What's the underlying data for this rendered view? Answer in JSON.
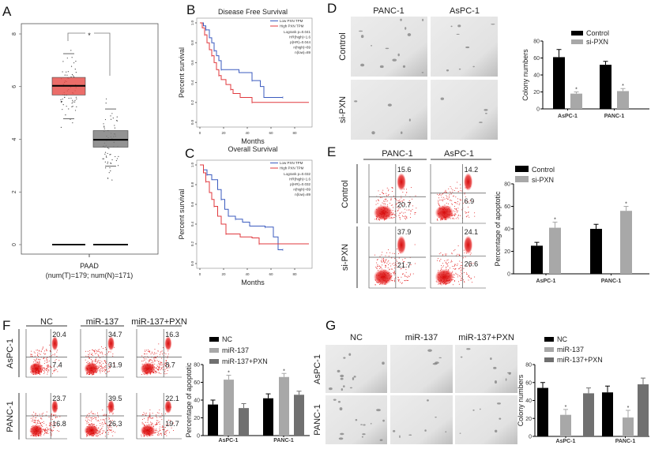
{
  "figure": {
    "panel_labels": {
      "A": "A",
      "B": "B",
      "C": "C",
      "D": "D",
      "E": "E",
      "F": "F",
      "G": "G"
    },
    "D": {
      "columns": [
        "PANC-1",
        "AsPC-1"
      ],
      "rows": [
        "Control",
        "si-PXN"
      ]
    },
    "E": {
      "columns": [
        "PANC-1",
        "AsPC-1"
      ],
      "rows": [
        "Control",
        "si-PXN"
      ],
      "quadrant_values": [
        [
          "15.6",
          "20.7"
        ],
        [
          "14.2",
          "6.9"
        ],
        [
          "37.9",
          "21.7"
        ],
        [
          "24.1",
          "26.6"
        ]
      ]
    },
    "F": {
      "columns": [
        "NC",
        "miR-137",
        "miR-137+PXN"
      ],
      "rows": [
        "AsPC-1",
        "PANC-1"
      ],
      "quadrant_values": [
        [
          "20.4",
          "7.4"
        ],
        [
          "34.7",
          "31.9"
        ],
        [
          "16.3",
          "8.7"
        ],
        [
          "23.7",
          "16.8"
        ],
        [
          "39.5",
          "26.3"
        ],
        [
          "22.1",
          "19.7"
        ]
      ]
    },
    "G": {
      "columns": [
        "NC",
        "miR-137",
        "miR-137+PXN"
      ],
      "rows": [
        "AsPC-1",
        "PANC-1"
      ]
    },
    "colors": {
      "tumor": "#e8534f",
      "normal": "#808080",
      "low": "#3b5bbf",
      "high": "#e0393e",
      "flow": "#e01010",
      "black": "#000000",
      "light_gray": "#a8a8a8",
      "dark_gray": "#707070"
    }
  },
  "chart_data": [
    {
      "type": "box",
      "xlabel": "PAAD",
      "subtitle": "(num(T)=179; num(N)=171)",
      "ylim": [
        0,
        8
      ],
      "yticks": [
        "0",
        "2",
        "4",
        "6",
        "8"
      ],
      "significance": "*",
      "boxes": [
        {
          "color": "#e8534f",
          "median": 6.03,
          "q1": 5.68,
          "q3": 6.35,
          "whisker_low": 4.78,
          "whisker_high": 7.25,
          "zero_line": 0
        },
        {
          "color": "#808080",
          "median": 3.98,
          "q1": 3.7,
          "q3": 4.33,
          "whisker_low": 2.98,
          "whisker_high": 5.15,
          "zero_line": 0
        }
      ]
    },
    {
      "type": "line",
      "title": "Disease Free Survival",
      "xlabel": "Months",
      "ylabel": "Percent survival",
      "xlim": [
        0,
        90
      ],
      "ylim": [
        0,
        1
      ],
      "xticks": [
        "0",
        "20",
        "40",
        "60",
        "80"
      ],
      "yticks": [
        "0.0",
        "0.2",
        "0.4",
        "0.6",
        "0.8",
        "1.0"
      ],
      "series": [
        {
          "name": "Low PXN TPM",
          "color": "#3b5bbf",
          "points": [
            [
              0,
              1
            ],
            [
              3,
              0.97
            ],
            [
              5,
              0.93
            ],
            [
              8,
              0.85
            ],
            [
              10,
              0.8
            ],
            [
              12,
              0.72
            ],
            [
              14,
              0.67
            ],
            [
              16,
              0.62
            ],
            [
              18,
              0.53
            ],
            [
              33,
              0.5
            ],
            [
              38,
              0.5
            ],
            [
              44,
              0.42
            ],
            [
              51,
              0.36
            ],
            [
              54,
              0.25
            ],
            [
              70,
              0.25
            ]
          ]
        },
        {
          "name": "High PXN TPM",
          "color": "#e0393e",
          "points": [
            [
              0,
              1
            ],
            [
              2,
              0.95
            ],
            [
              4,
              0.88
            ],
            [
              6,
              0.8
            ],
            [
              8,
              0.73
            ],
            [
              10,
              0.67
            ],
            [
              12,
              0.6
            ],
            [
              14,
              0.53
            ],
            [
              16,
              0.47
            ],
            [
              18,
              0.43
            ],
            [
              22,
              0.38
            ],
            [
              26,
              0.33
            ],
            [
              28,
              0.29
            ],
            [
              34,
              0.25
            ],
            [
              44,
              0.2
            ],
            [
              92,
              0.2
            ]
          ]
        }
      ],
      "stats": [
        "Logrank p=0.041",
        "HR(high)=1.6",
        "p(HR)=0.044",
        "n(high)=89",
        "n(low)=89"
      ]
    },
    {
      "type": "line",
      "title": "Overall Survival",
      "xlabel": "Months",
      "ylabel": "Percent survival",
      "xlim": [
        0,
        90
      ],
      "ylim": [
        0,
        1
      ],
      "xticks": [
        "0",
        "20",
        "40",
        "60",
        "80"
      ],
      "yticks": [
        "0.0",
        "0.2",
        "0.4",
        "0.6",
        "0.8",
        "1.0"
      ],
      "series": [
        {
          "name": "Low PXN TPM",
          "color": "#3b5bbf",
          "points": [
            [
              0,
              1
            ],
            [
              3,
              0.95
            ],
            [
              6,
              0.9
            ],
            [
              10,
              0.85
            ],
            [
              15,
              0.75
            ],
            [
              18,
              0.65
            ],
            [
              21,
              0.55
            ],
            [
              24,
              0.48
            ],
            [
              30,
              0.45
            ],
            [
              36,
              0.42
            ],
            [
              42,
              0.38
            ],
            [
              55,
              0.37
            ],
            [
              62,
              0.27
            ],
            [
              66,
              0.14
            ],
            [
              70,
              0.14
            ]
          ]
        },
        {
          "name": "High PXN TPM",
          "color": "#e0393e",
          "points": [
            [
              0,
              1
            ],
            [
              3,
              0.92
            ],
            [
              5,
              0.83
            ],
            [
              8,
              0.72
            ],
            [
              10,
              0.65
            ],
            [
              12,
              0.58
            ],
            [
              15,
              0.48
            ],
            [
              18,
              0.4
            ],
            [
              22,
              0.3
            ],
            [
              34,
              0.27
            ],
            [
              44,
              0.26
            ],
            [
              50,
              0.2
            ],
            [
              92,
              0.2
            ]
          ]
        }
      ],
      "stats": [
        "Logrank p=0.032",
        "HR(high)=1.6",
        "p(HR)=0.032",
        "n(high)=89",
        "n(low)=89"
      ]
    },
    {
      "type": "bar",
      "ylabel": "Colony numbers",
      "ylim": [
        0,
        80
      ],
      "yticks": [
        "0",
        "20",
        "40",
        "60",
        "80"
      ],
      "categories": [
        "AsPC-1",
        "PANC-1"
      ],
      "series": [
        {
          "name": "Control",
          "color": "#000000",
          "values": [
            61,
            52
          ],
          "errors": [
            9,
            4
          ],
          "stars": [
            "",
            ""
          ]
        },
        {
          "name": "si-PXN",
          "color": "#a8a8a8",
          "values": [
            18,
            21
          ],
          "errors": [
            2,
            3
          ],
          "stars": [
            "*",
            "*"
          ]
        }
      ]
    },
    {
      "type": "bar",
      "ylabel": "Percentage of apoptotic",
      "ylim": [
        0,
        80
      ],
      "yticks": [
        "0",
        "20",
        "40",
        "60",
        "80"
      ],
      "categories": [
        "AsPC-1",
        "PANC-1"
      ],
      "series": [
        {
          "name": "Control",
          "color": "#000000",
          "values": [
            25,
            40
          ],
          "errors": [
            3,
            4
          ],
          "stars": [
            "",
            ""
          ]
        },
        {
          "name": "si-PXN",
          "color": "#a8a8a8",
          "values": [
            41,
            56
          ],
          "errors": [
            5,
            4
          ],
          "stars": [
            "*",
            "*"
          ]
        }
      ]
    },
    {
      "type": "bar",
      "ylabel": "Percentage of apoptotic",
      "ylim": [
        0,
        80
      ],
      "yticks": [
        "0",
        "20",
        "40",
        "60",
        "80"
      ],
      "categories": [
        "AsPC-1",
        "PANC-1"
      ],
      "series": [
        {
          "name": "NC",
          "color": "#000000",
          "values": [
            35,
            42
          ],
          "errors": [
            5,
            5
          ],
          "stars": [
            "",
            ""
          ]
        },
        {
          "name": "miR-137",
          "color": "#a8a8a8",
          "values": [
            63,
            66
          ],
          "errors": [
            5,
            4
          ],
          "stars": [
            "*",
            "*"
          ]
        },
        {
          "name": "miR-137+PXN",
          "color": "#707070",
          "values": [
            31,
            46
          ],
          "errors": [
            5,
            4
          ],
          "stars": [
            "",
            ""
          ]
        }
      ]
    },
    {
      "type": "bar",
      "ylabel": "Colony numbers",
      "ylim": [
        0,
        80
      ],
      "yticks": [
        "0",
        "20",
        "40",
        "60",
        "80"
      ],
      "categories": [
        "AsPC-1",
        "PANC-1"
      ],
      "series": [
        {
          "name": "NC",
          "color": "#000000",
          "values": [
            54,
            49
          ],
          "errors": [
            6,
            7
          ],
          "stars": [
            "",
            ""
          ]
        },
        {
          "name": "miR-137",
          "color": "#a8a8a8",
          "values": [
            24,
            21
          ],
          "errors": [
            6,
            8
          ],
          "stars": [
            "*",
            "*"
          ]
        },
        {
          "name": "miR-137+PXN",
          "color": "#707070",
          "values": [
            48,
            58
          ],
          "errors": [
            6,
            7
          ],
          "stars": [
            "",
            ""
          ]
        }
      ]
    }
  ]
}
